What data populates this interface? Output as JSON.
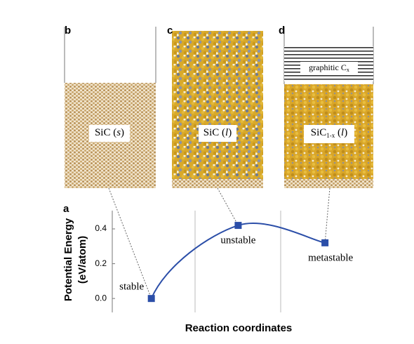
{
  "panels": [
    {
      "letter": "b",
      "label": [
        "SiC (",
        "s",
        ")"
      ]
    },
    {
      "letter": "c",
      "label": [
        "SiC (",
        "l",
        ")"
      ]
    },
    {
      "letter": "d",
      "label": [
        "SiC",
        "1-x",
        " (",
        "l",
        ")"
      ],
      "layer_label": [
        "graphitic C",
        "x"
      ]
    }
  ],
  "chart_data": {
    "type": "line",
    "panel_letter": "a",
    "ylabel_lines": [
      "Potential Energy",
      "(eV/atom)"
    ],
    "xlabel": "Reaction coordinates",
    "x": [
      1,
      2,
      3
    ],
    "values": [
      0.0,
      0.42,
      0.32
    ],
    "color": "#2b4ea8",
    "point_labels": [
      "stable",
      "unstable",
      "metastable"
    ],
    "xlim": [
      0.55,
      3.5
    ],
    "ylim": [
      -0.08,
      0.505
    ],
    "yticks": [
      {
        "value": 0,
        "label": "0.0"
      },
      0.2,
      0.4
    ]
  }
}
